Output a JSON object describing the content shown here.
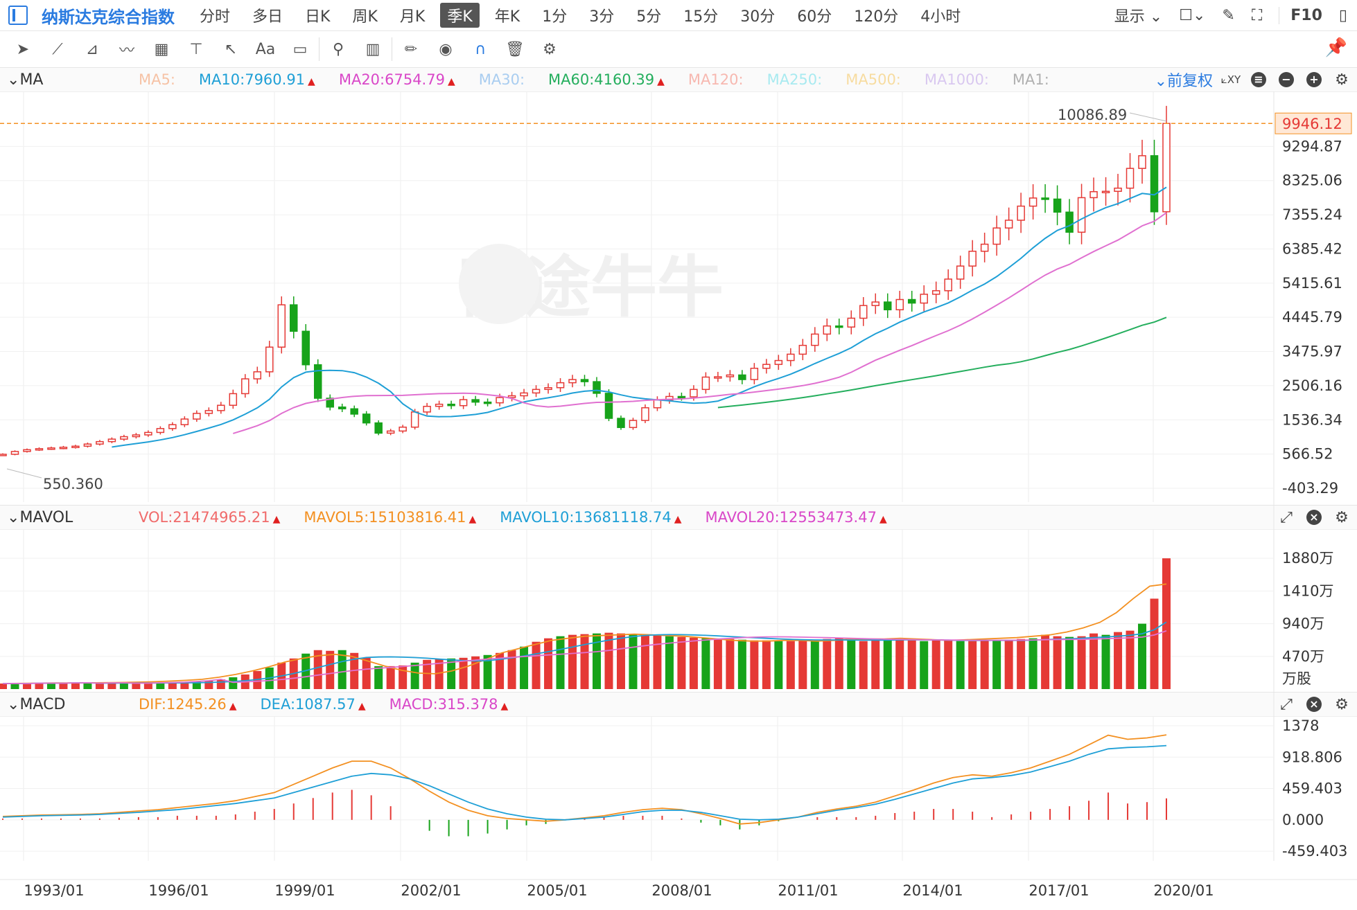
{
  "header": {
    "title": "纳斯达克综合指数",
    "periods": [
      {
        "label": "分时",
        "active": false
      },
      {
        "label": "多日",
        "active": false
      },
      {
        "label": "日K",
        "active": false
      },
      {
        "label": "周K",
        "active": false
      },
      {
        "label": "月K",
        "active": false
      },
      {
        "label": "季K",
        "active": true
      },
      {
        "label": "年K",
        "active": false
      },
      {
        "label": "1分",
        "active": false
      },
      {
        "label": "3分",
        "active": false
      },
      {
        "label": "5分",
        "active": false
      },
      {
        "label": "15分",
        "active": false
      },
      {
        "label": "30分",
        "active": false
      },
      {
        "label": "60分",
        "active": false
      },
      {
        "label": "120分",
        "active": false
      },
      {
        "label": "4小时",
        "active": false
      }
    ],
    "display_label": "显示 ⌄",
    "f10_label": "F10"
  },
  "ma_panel": {
    "name": "MA",
    "items": [
      {
        "label": "MA5:",
        "color": "#f6c2a5",
        "up": false
      },
      {
        "label": "MA10:7960.91",
        "color": "#1e9fd6",
        "up": true
      },
      {
        "label": "MA20:6754.79",
        "color": "#d947c8",
        "up": true
      },
      {
        "label": "MA30:",
        "color": "#a9cdf0",
        "up": false
      },
      {
        "label": "MA60:4160.39",
        "color": "#24ae5d",
        "up": true
      },
      {
        "label": "MA120:",
        "color": "#f7b8b0",
        "up": false
      },
      {
        "label": "MA250:",
        "color": "#a8eaf0",
        "up": false
      },
      {
        "label": "MA500:",
        "color": "#f7dca0",
        "up": false
      },
      {
        "label": "MA1000:",
        "color": "#d9c8f0",
        "up": false
      },
      {
        "label": "MA1:",
        "color": "#b0b0b0",
        "up": false
      }
    ],
    "adjust_label": "⌄前复权",
    "price_axis": [
      "9294.87",
      "8325.06",
      "7355.24",
      "6385.42",
      "5415.61",
      "4445.79",
      "3475.97",
      "2506.16",
      "1536.34",
      "566.52",
      "-403.29"
    ],
    "top_clipped_tick": "10264.69",
    "current_price": "9946.12",
    "high_label": "10086.89",
    "low_label": "550.360",
    "watermark": "富途牛牛"
  },
  "vol_panel": {
    "name": "MAVOL",
    "items": [
      {
        "label": "VOL:21474965.21",
        "color": "#f06a6a"
      },
      {
        "label": "MAVOL5:15103816.41",
        "color": "#f39021"
      },
      {
        "label": "MAVOL10:13681118.74",
        "color": "#1e9fd6"
      },
      {
        "label": "MAVOL20:12553473.47",
        "color": "#d947c8"
      }
    ],
    "axis": [
      "1880万",
      "1410万",
      "940万",
      "470万",
      "万股"
    ]
  },
  "macd_panel": {
    "name": "MACD",
    "items": [
      {
        "label": "DIF:1245.26",
        "color": "#f39021"
      },
      {
        "label": "DEA:1087.57",
        "color": "#1e9fd6"
      },
      {
        "label": "MACD:315.378",
        "color": "#d947c8"
      }
    ],
    "axis": [
      "1378",
      "918.806",
      "459.403",
      "0.000",
      "-459.403"
    ]
  },
  "chart_data": {
    "type": "candlestick",
    "period": "quarterly",
    "x_axis_labels": [
      "1993/01",
      "1996/01",
      "1999/01",
      "2002/01",
      "2005/01",
      "2008/01",
      "2011/01",
      "2014/01",
      "2017/01",
      "2020/01"
    ],
    "price_ylim": [
      -403.29,
      10264.69
    ],
    "close_values": [
      560,
      640,
      690,
      720,
      740,
      760,
      790,
      850,
      920,
      990,
      1060,
      1110,
      1180,
      1290,
      1400,
      1560,
      1720,
      1800,
      1950,
      2280,
      2700,
      2900,
      3600,
      4800,
      4050,
      3100,
      2150,
      1900,
      1850,
      1700,
      1450,
      1160,
      1220,
      1330,
      1760,
      1920,
      1980,
      1940,
      2110,
      2040,
      2020,
      2170,
      2220,
      2300,
      2400,
      2450,
      2590,
      2680,
      2620,
      2290,
      1580,
      1320,
      1520,
      1880,
      2100,
      2200,
      2190,
      2400,
      2750,
      2760,
      2810,
      2680,
      3000,
      3110,
      3220,
      3400,
      3650,
      3970,
      4200,
      4170,
      4420,
      4780,
      4880,
      4660,
      4950,
      4850,
      5100,
      5200,
      5530,
      5900,
      6320,
      6520,
      6980,
      7200,
      7600,
      7830,
      7800,
      7430,
      6860,
      7840,
      8010,
      8020,
      8110,
      8670,
      9030,
      7440,
      9946
    ],
    "volume_millions": [
      80,
      80,
      80,
      85,
      85,
      85,
      90,
      90,
      85,
      90,
      90,
      85,
      85,
      90,
      95,
      100,
      110,
      120,
      140,
      170,
      210,
      260,
      310,
      380,
      440,
      510,
      560,
      550,
      560,
      520,
      450,
      330,
      330,
      340,
      380,
      420,
      430,
      440,
      450,
      470,
      490,
      520,
      560,
      610,
      680,
      730,
      760,
      780,
      790,
      800,
      810,
      800,
      790,
      780,
      770,
      760,
      750,
      740,
      730,
      720,
      720,
      710,
      700,
      700,
      690,
      690,
      700,
      710,
      720,
      730,
      700,
      690,
      700,
      710,
      720,
      700,
      690,
      700,
      700,
      690,
      690,
      700,
      700,
      710,
      720,
      730,
      780,
      760,
      750,
      760,
      800,
      780,
      820,
      840,
      940,
      1300,
      1880
    ],
    "mavol5_millions": [
      80,
      82,
      85,
      88,
      88,
      90,
      92,
      95,
      100,
      105,
      115,
      125,
      140,
      170,
      210,
      260,
      320,
      390,
      440,
      480,
      500,
      470,
      400,
      330,
      270,
      230,
      220,
      260,
      330,
      420,
      520,
      580,
      640,
      700,
      730,
      760,
      770,
      780,
      790,
      780,
      770,
      760,
      740,
      720,
      700,
      690,
      690,
      700,
      700,
      690,
      700,
      720,
      720,
      720,
      730,
      720,
      710,
      700,
      710,
      720,
      730,
      740,
      760,
      780,
      820,
      880,
      960,
      1100,
      1300,
      1480,
      1510
    ],
    "dif_values": [
      50,
      60,
      70,
      75,
      80,
      90,
      110,
      130,
      150,
      180,
      210,
      240,
      280,
      340,
      400,
      520,
      640,
      760,
      860,
      860,
      760,
      600,
      420,
      260,
      140,
      60,
      20,
      0,
      -20,
      0,
      30,
      60,
      110,
      150,
      170,
      150,
      90,
      20,
      -60,
      -40,
      0,
      40,
      110,
      160,
      200,
      260,
      350,
      440,
      540,
      620,
      660,
      640,
      690,
      760,
      860,
      960,
      1100,
      1240,
      1180,
      1200,
      1245
    ],
    "dea_values": [
      40,
      50,
      60,
      65,
      70,
      80,
      95,
      110,
      130,
      150,
      180,
      210,
      240,
      280,
      320,
      400,
      480,
      560,
      640,
      680,
      660,
      600,
      500,
      380,
      260,
      160,
      90,
      40,
      10,
      0,
      20,
      40,
      80,
      120,
      140,
      140,
      110,
      60,
      10,
      0,
      10,
      40,
      90,
      140,
      180,
      230,
      300,
      380,
      460,
      540,
      600,
      620,
      650,
      700,
      780,
      860,
      960,
      1040,
      1060,
      1070,
      1087.57
    ],
    "ma_lines": [
      "MA10",
      "MA20",
      "MA60"
    ]
  }
}
